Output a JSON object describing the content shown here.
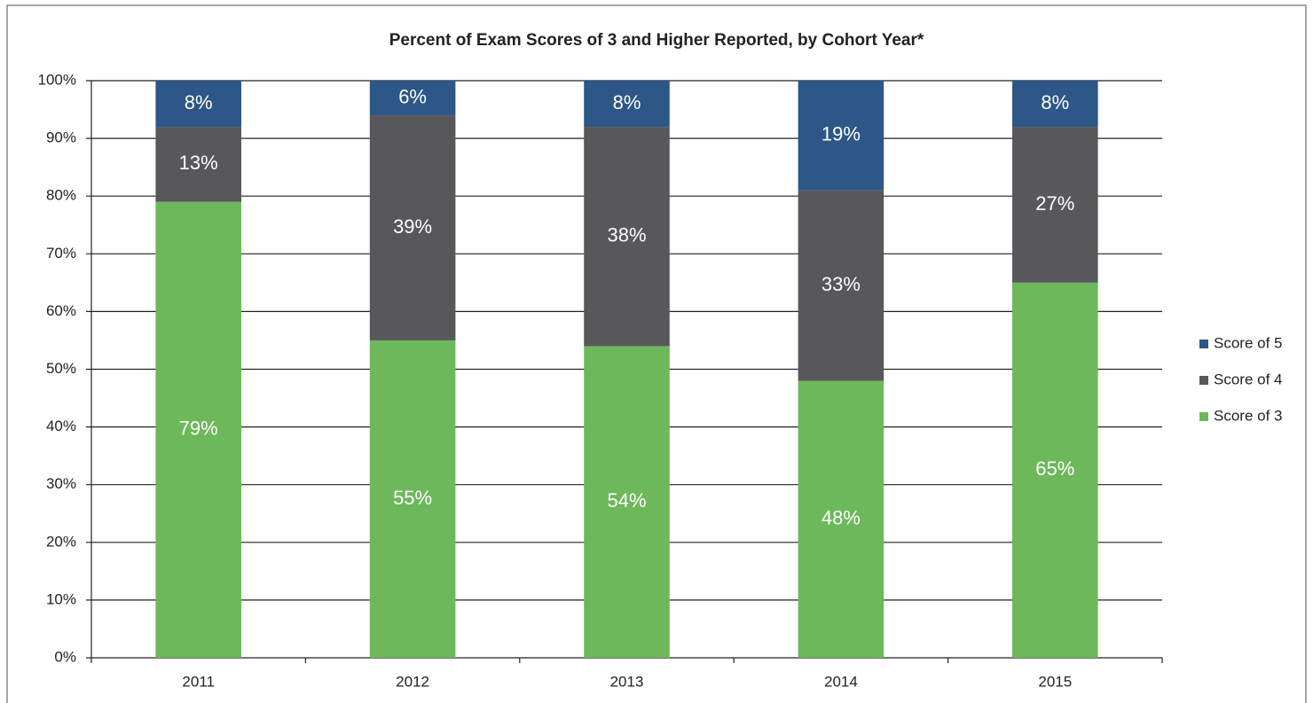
{
  "chart_data": {
    "type": "stacked_bar",
    "title": "Percent of Exam Scores of 3 and Higher Reported, by Cohort Year*",
    "categories": [
      "2011",
      "2012",
      "2013",
      "2014",
      "2015"
    ],
    "series": [
      {
        "name": "Score of 3",
        "color": "#6db85b",
        "values": [
          79,
          55,
          54,
          48,
          65
        ],
        "value_labels": [
          "79%",
          "55%",
          "54%",
          "48%",
          "65%"
        ]
      },
      {
        "name": "Score of 4",
        "color": "#58585b",
        "values": [
          13,
          39,
          38,
          33,
          27
        ],
        "value_labels": [
          "13%",
          "39%",
          "38%",
          "33%",
          "27%"
        ]
      },
      {
        "name": "Score of 5",
        "color": "#2c5786",
        "values": [
          8,
          6,
          8,
          19,
          8
        ],
        "value_labels": [
          "8%",
          "6%",
          "8%",
          "19%",
          "8%"
        ]
      }
    ],
    "ylim": [
      0,
      100
    ],
    "yticks": [
      {
        "value": 0,
        "label": "0%"
      },
      {
        "value": 10,
        "label": "10%"
      },
      {
        "value": 20,
        "label": "20%"
      },
      {
        "value": 30,
        "label": "30%"
      },
      {
        "value": 40,
        "label": "40%"
      },
      {
        "value": 50,
        "label": "50%"
      },
      {
        "value": 60,
        "label": "60%"
      },
      {
        "value": 70,
        "label": "70%"
      },
      {
        "value": 80,
        "label": "80%"
      },
      {
        "value": 90,
        "label": "90%"
      },
      {
        "value": 100,
        "label": "100%"
      }
    ],
    "grid": true,
    "legend": "right"
  }
}
